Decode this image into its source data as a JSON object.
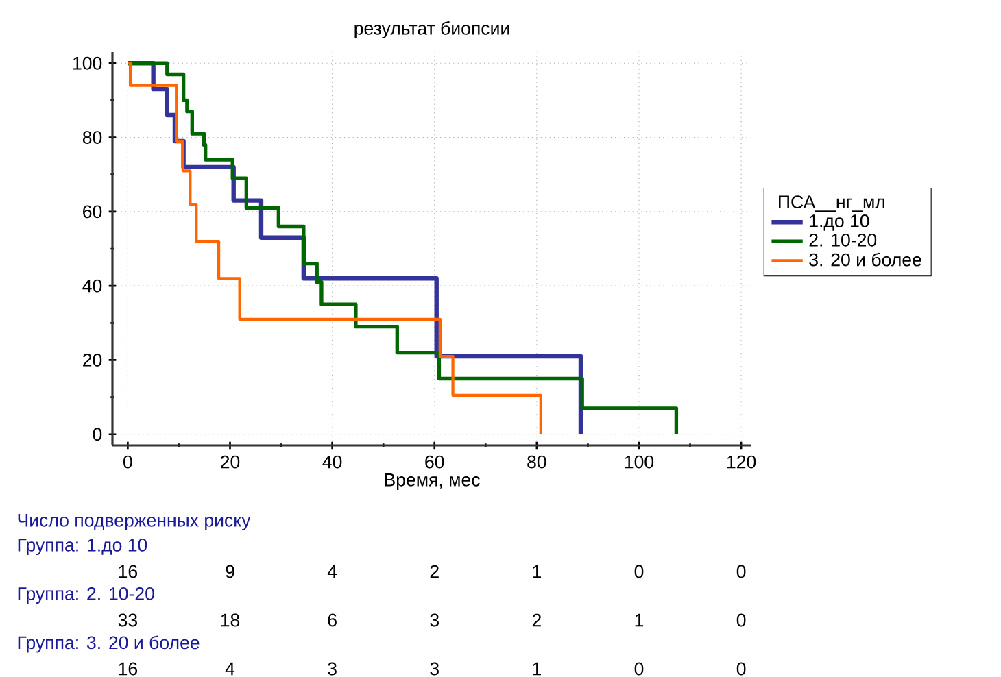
{
  "chart_data": {
    "type": "step",
    "title": "результат биопсии",
    "xlabel": "Время, мес",
    "legend_title": "ПСА__нг_мл",
    "xlim": [
      -3,
      122
    ],
    "ylim": [
      -3,
      103
    ],
    "xticks": [
      0,
      20,
      40,
      60,
      80,
      100,
      120
    ],
    "yticks": [
      0,
      20,
      40,
      60,
      80,
      100
    ],
    "grid": true,
    "legend": "right",
    "marker": "none",
    "line_style": "solid",
    "series": [
      {
        "name": "1.до 10",
        "color": "#333399",
        "x": [
          0,
          5,
          7.7,
          9.2,
          10.9,
          20.7,
          26.1,
          34.4,
          60.4,
          88.6
        ],
        "values": [
          100,
          93,
          86,
          79,
          72,
          63,
          53,
          42,
          21,
          0
        ]
      },
      {
        "name": "2. 10-20",
        "color": "#006600",
        "x": [
          0,
          7.7,
          10.9,
          11.6,
          12.6,
          14.9,
          15.2,
          20.5,
          23.2,
          29.5,
          34.4,
          37,
          37.9,
          44.6,
          52.7,
          60.9,
          88.9,
          107.3
        ],
        "values": [
          100,
          97,
          90,
          87,
          81,
          78,
          74,
          69,
          61,
          56,
          46,
          41,
          35,
          29,
          22,
          15,
          7,
          0
        ]
      },
      {
        "name": "3. 20 и более",
        "color": "#ff6600",
        "x": [
          0,
          0.5,
          9.5,
          10.8,
          12.2,
          13.4,
          17.8,
          21.9,
          61.1,
          63.6,
          80.8
        ],
        "values": [
          100,
          94,
          79,
          71,
          62,
          52,
          42,
          31,
          21,
          10.5,
          0
        ]
      }
    ],
    "annotations": [
      "Число подверженных риску",
      "Группа: 1.до 10",
      "16",
      "9",
      "4",
      "2",
      "1",
      "0",
      "0",
      "Группа: 2. 10-20",
      "33",
      "18",
      "6",
      "3",
      "2",
      "1",
      "0",
      "Группа: 3. 20 и более",
      "16",
      "4",
      "3",
      "3",
      "1",
      "0",
      "0"
    ]
  }
}
